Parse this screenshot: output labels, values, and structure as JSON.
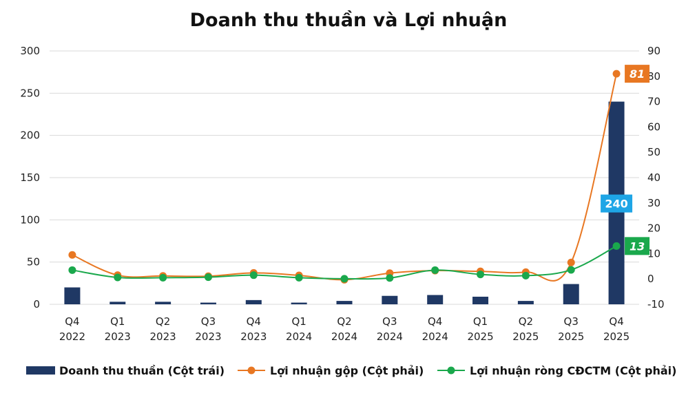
{
  "chart_data": {
    "type": "bar",
    "title": "Doanh thu thuần và Lợi nhuận",
    "categories": [
      [
        "Q4",
        "2022"
      ],
      [
        "Q1",
        "2023"
      ],
      [
        "Q2",
        "2023"
      ],
      [
        "Q3",
        "2023"
      ],
      [
        "Q4",
        "2023"
      ],
      [
        "Q1",
        "2024"
      ],
      [
        "Q2",
        "2024"
      ],
      [
        "Q3",
        "2024"
      ],
      [
        "Q4",
        "2024"
      ],
      [
        "Q1",
        "2025"
      ],
      [
        "Q2",
        "2025"
      ],
      [
        "Q3",
        "2025"
      ],
      [
        "Q4",
        "2025"
      ]
    ],
    "y_left": {
      "min": 0,
      "max": 300,
      "ticks": [
        "0",
        "50",
        "100",
        "150",
        "200",
        "250",
        "300"
      ]
    },
    "y_right": {
      "min": -10,
      "max": 90,
      "ticks": [
        "-10",
        "0",
        "10",
        "20",
        "30",
        "40",
        "50",
        "60",
        "70",
        "80",
        "90"
      ]
    },
    "grid": true,
    "legend_position": "bottom",
    "series": [
      {
        "name": "Doanh thu thuần (Cột trái)",
        "type": "bar",
        "axis": "left",
        "color": "#1f3864",
        "values": [
          20,
          3,
          3,
          2,
          5,
          2,
          4,
          10,
          11,
          9,
          4,
          24,
          240
        ]
      },
      {
        "name": "Lợi nhuận gộp (Cột phải)",
        "type": "line",
        "axis": "right",
        "color": "#e87722",
        "values": [
          9.5,
          1.5,
          1.2,
          1.1,
          2.4,
          1.4,
          -0.3,
          2.3,
          3.3,
          3,
          2.7,
          6.5,
          81
        ]
      },
      {
        "name": "Lợi nhuận ròng CĐCTM (Cột phải)",
        "type": "line",
        "axis": "right",
        "color": "#1aa84c",
        "values": [
          3.5,
          0.6,
          0.5,
          0.7,
          1.5,
          0.5,
          0.1,
          0.4,
          3.5,
          1.8,
          1.3,
          3.6,
          13
        ]
      }
    ],
    "data_labels": [
      {
        "series": 0,
        "index": 12,
        "text": "240",
        "color": "#1ea5e6"
      },
      {
        "series": 1,
        "index": 12,
        "text": "81",
        "color": "#e87722"
      },
      {
        "series": 2,
        "index": 12,
        "text": "13",
        "color": "#1aa84c"
      }
    ]
  }
}
